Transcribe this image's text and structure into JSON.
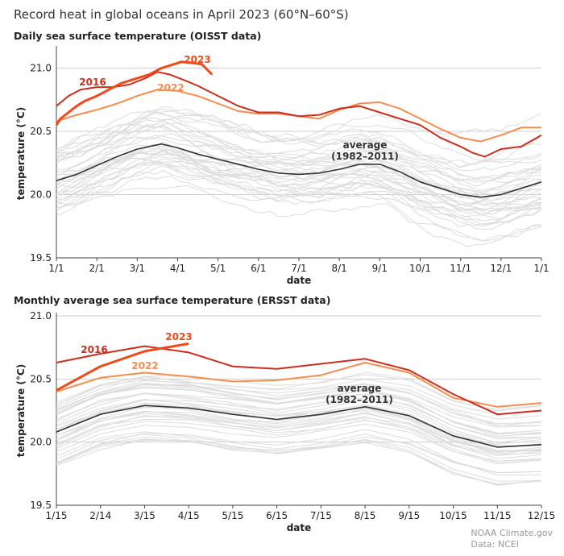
{
  "title": "Record heat in global oceans in April 2023 (60°N–60°S)",
  "credit": [
    "NOAA Climate.gov",
    "Data: NCEI"
  ],
  "colors": {
    "y2023": "#f04a1a",
    "y2016": "#cc2d1c",
    "y2022": "#f78d4d",
    "average": "#333333",
    "background_years": "#dddddd",
    "grid": "#cfcfcf"
  },
  "chart_data": [
    {
      "type": "line",
      "title": "Daily sea surface temperature (OISST data)",
      "xlabel": "date",
      "ylabel": "temperature (°C)",
      "x_tick_labels": [
        "1/1",
        "2/1",
        "3/1",
        "4/1",
        "5/1",
        "6/1",
        "7/1",
        "8/1",
        "9/1",
        "10/1",
        "11/1",
        "12/1",
        "1/1"
      ],
      "y_ticks": [
        19.5,
        20.0,
        20.5,
        21.0
      ],
      "ylim": [
        19.5,
        21.15
      ],
      "xlim": [
        1,
        13
      ],
      "grid": "horizontal",
      "series": [
        {
          "name": "2023",
          "x": [
            1.0,
            1.1,
            1.3,
            1.5,
            1.7,
            2.0,
            2.3,
            2.6,
            3.0,
            3.3,
            3.6,
            3.9,
            4.1,
            4.4,
            4.6,
            4.85
          ],
          "y": [
            20.55,
            20.6,
            20.65,
            20.7,
            20.74,
            20.78,
            20.83,
            20.88,
            20.92,
            20.95,
            21.0,
            21.03,
            21.05,
            21.04,
            21.03,
            20.95
          ]
        },
        {
          "name": "2016",
          "x": [
            1.0,
            1.3,
            1.6,
            2.0,
            2.4,
            2.8,
            3.2,
            3.5,
            3.8,
            4.2,
            4.5,
            5.0,
            5.5,
            6.0,
            6.5,
            7.0,
            7.5,
            8.0,
            8.5,
            9.0,
            9.5,
            10.0,
            10.5,
            11.0,
            11.3,
            11.6,
            12.0,
            12.5,
            13.0
          ],
          "y": [
            20.7,
            20.78,
            20.83,
            20.85,
            20.85,
            20.87,
            20.92,
            20.97,
            20.95,
            20.9,
            20.86,
            20.78,
            20.7,
            20.65,
            20.65,
            20.62,
            20.63,
            20.68,
            20.7,
            20.65,
            20.6,
            20.55,
            20.45,
            20.38,
            20.33,
            20.3,
            20.36,
            20.38,
            20.47
          ]
        },
        {
          "name": "2022",
          "x": [
            1.0,
            1.5,
            2.0,
            2.5,
            3.0,
            3.5,
            4.0,
            4.5,
            5.0,
            5.5,
            6.0,
            6.5,
            7.0,
            7.5,
            8.0,
            8.5,
            9.0,
            9.5,
            10.0,
            10.5,
            11.0,
            11.5,
            12.0,
            12.5,
            13.0
          ],
          "y": [
            20.58,
            20.63,
            20.67,
            20.72,
            20.78,
            20.83,
            20.82,
            20.78,
            20.72,
            20.66,
            20.64,
            20.64,
            20.62,
            20.6,
            20.67,
            20.72,
            20.73,
            20.68,
            20.6,
            20.52,
            20.45,
            20.42,
            20.47,
            20.53,
            20.53
          ]
        },
        {
          "name": "average (1982–2011)",
          "x": [
            1.0,
            1.5,
            2.0,
            2.5,
            3.0,
            3.6,
            4.0,
            4.5,
            5.0,
            5.5,
            6.0,
            6.5,
            7.0,
            7.5,
            8.0,
            8.5,
            9.0,
            9.5,
            10.0,
            10.5,
            11.0,
            11.5,
            12.0,
            12.5,
            13.0
          ],
          "y": [
            20.11,
            20.16,
            20.23,
            20.3,
            20.36,
            20.4,
            20.37,
            20.32,
            20.28,
            20.24,
            20.2,
            20.17,
            20.16,
            20.17,
            20.2,
            20.24,
            20.24,
            20.18,
            20.1,
            20.05,
            20.0,
            19.98,
            20.0,
            20.05,
            20.1
          ]
        }
      ],
      "annotations": [
        "2023",
        "2016",
        "2022",
        "average",
        "(1982–2011)"
      ]
    },
    {
      "type": "line",
      "title": "Monthly average sea surface temperature (ERSST data)",
      "xlabel": "date",
      "ylabel": "temperature (°C)",
      "x_tick_labels": [
        "1/15",
        "2/14",
        "3/15",
        "4/15",
        "5/15",
        "6/15",
        "7/15",
        "8/15",
        "9/15",
        "10/15",
        "11/15",
        "12/15"
      ],
      "y_ticks": [
        19.5,
        20.0,
        20.5,
        21.0
      ],
      "ylim": [
        19.5,
        21.0
      ],
      "xlim": [
        1,
        12
      ],
      "grid": "horizontal",
      "series": [
        {
          "name": "2023",
          "x": [
            1,
            2,
            3,
            4
          ],
          "y": [
            20.41,
            20.6,
            20.72,
            20.78
          ]
        },
        {
          "name": "2016",
          "x": [
            1,
            2,
            3,
            4,
            5,
            6,
            7,
            8,
            9,
            10,
            11,
            12
          ],
          "y": [
            20.63,
            20.7,
            20.76,
            20.71,
            20.6,
            20.58,
            20.62,
            20.66,
            20.57,
            20.38,
            20.22,
            20.25
          ]
        },
        {
          "name": "2022",
          "x": [
            1,
            2,
            3,
            4,
            5,
            6,
            7,
            8,
            9,
            10,
            11,
            12
          ],
          "y": [
            20.4,
            20.51,
            20.55,
            20.52,
            20.48,
            20.49,
            20.53,
            20.63,
            20.55,
            20.35,
            20.28,
            20.31
          ]
        },
        {
          "name": "average (1982–2011)",
          "x": [
            1,
            2,
            3,
            4,
            5,
            6,
            7,
            8,
            9,
            10,
            11,
            12
          ],
          "y": [
            20.08,
            20.22,
            20.29,
            20.27,
            20.22,
            20.18,
            20.22,
            20.28,
            20.21,
            20.05,
            19.96,
            19.98
          ]
        }
      ],
      "annotations": [
        "2023",
        "2016",
        "2022",
        "average",
        "(1982–2011)"
      ]
    }
  ]
}
